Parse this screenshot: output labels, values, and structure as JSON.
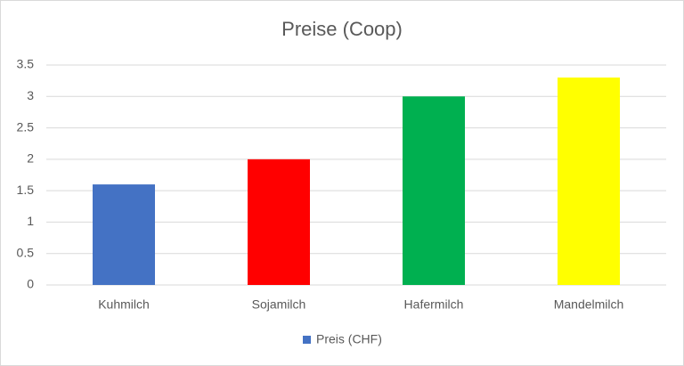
{
  "chart_data": {
    "type": "bar",
    "title": "Preise (Coop)",
    "categories": [
      "Kuhmilch",
      "Sojamilch",
      "Hafermilch",
      "Mandelmilch"
    ],
    "series": [
      {
        "name": "Preis (CHF)",
        "color": "#4472c4",
        "values": [
          1.6,
          2.0,
          3.0,
          3.3
        ],
        "point_colors": [
          "#4472c4",
          "#ff0000",
          "#00b050",
          "#ffff00"
        ]
      }
    ],
    "ylim": [
      0,
      3.5
    ],
    "yticks": [
      0,
      0.5,
      1,
      1.5,
      2,
      2.5,
      3,
      3.5
    ],
    "grid": true,
    "legend": "bottom"
  }
}
